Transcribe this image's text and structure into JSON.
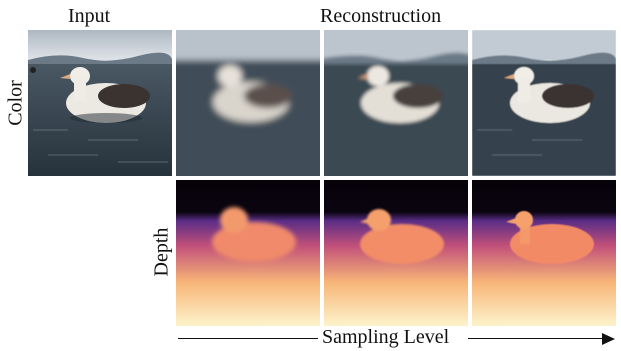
{
  "headers": {
    "input": "Input",
    "reconstruction": "Reconstruction"
  },
  "row_labels": {
    "color": "Color",
    "depth": "Depth"
  },
  "axis": {
    "label": "Sampling Level"
  },
  "colors": {
    "water": "#3a4a55",
    "sky": "#c9cfd6",
    "mountain": "#6c7a88",
    "bird_body": "#e9e6df",
    "bird_wing": "#3b3330",
    "beak": "#e0a77c",
    "depth_far": "#060208",
    "depth_mid": "#5a2d86",
    "depth_near": "#f7b577",
    "depth_closest": "#fdf3cc"
  },
  "reconstruction_blur_levels": [
    3.2,
    1.8,
    0.4
  ]
}
